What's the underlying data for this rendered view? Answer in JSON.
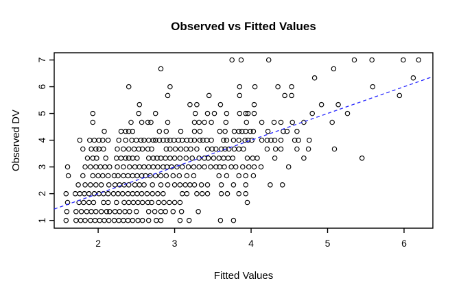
{
  "chart_data": {
    "type": "scatter",
    "title": "Observed vs Fitted Values",
    "xlabel": "Fitted Values",
    "ylabel": "Observed DV",
    "x_ticks": [
      2,
      3,
      4,
      5,
      6
    ],
    "y_ticks": [
      1,
      2,
      3,
      4,
      5,
      6,
      7
    ],
    "xlim": [
      1.425,
      6.377
    ],
    "ylim": [
      0.71,
      7.27
    ],
    "grid": false,
    "legend": "none",
    "point_style": "open-circle",
    "point_color": "#000000",
    "background_color": "#ffffff",
    "reference_line": {
      "name": "identity-line",
      "slope": 1,
      "intercept": 0,
      "color": "#2222ff",
      "style": "dashed"
    },
    "rows": [
      {
        "y": 7,
        "x": [
          3.75,
          3.87,
          4.23,
          5.35,
          5.58,
          5.99,
          6.19
        ]
      },
      {
        "y": 6.67,
        "x": [
          2.82,
          5.08
        ]
      },
      {
        "y": 6.33,
        "x": [
          4.83,
          6.12
        ]
      },
      {
        "y": 6,
        "x": [
          2.4,
          2.94,
          3.85,
          4.05,
          4.35,
          4.53,
          5.59
        ]
      },
      {
        "y": 5.67,
        "x": [
          2.91,
          3.45,
          3.85,
          4.44,
          4.53,
          5.94
        ]
      },
      {
        "y": 5.33,
        "x": [
          2.54,
          3.2,
          3.29,
          3.6,
          4.04,
          4.92,
          5.14
        ]
      },
      {
        "y": 5,
        "x": [
          1.93,
          2.53,
          2.75,
          3.27,
          3.43,
          3.52,
          3.68,
          3.85,
          3.93,
          3.96,
          4.04,
          4.8,
          5.26
        ]
      },
      {
        "y": 4.67,
        "x": [
          1.93,
          2.43,
          2.57,
          2.65,
          2.69,
          2.91,
          3.26,
          3.32,
          3.39,
          3.48,
          3.67,
          3.94,
          4.14,
          4.3,
          4.39,
          4.54,
          4.69,
          5.06
        ]
      },
      {
        "y": 4.33,
        "x": [
          2.08,
          2.3,
          2.36,
          2.4,
          2.45,
          2.8,
          2.89,
          3.08,
          3.26,
          3.33,
          3.59,
          3.66,
          3.78,
          3.84,
          3.88,
          3.93,
          3.99,
          4.03,
          4.22,
          4.42,
          4.47,
          4.6
        ]
      },
      {
        "y": 4,
        "x": [
          1.76,
          1.89,
          1.95,
          2.01,
          2.06,
          2.13,
          2.27,
          2.36,
          2.44,
          2.5,
          2.56,
          2.6,
          2.66,
          2.72,
          2.75,
          2.8,
          2.85,
          2.9,
          2.94,
          2.99,
          3.05,
          3.1,
          3.16,
          3.21,
          3.26,
          3.33,
          3.37,
          3.42,
          3.48,
          3.64,
          3.68,
          3.77,
          3.84,
          3.92,
          3.96,
          4.01,
          4.14,
          4.21,
          4.26,
          4.31,
          4.39,
          4.57,
          4.62,
          4.76
        ]
      },
      {
        "y": 3.67,
        "x": [
          1.8,
          1.91,
          1.97,
          2.01,
          2.07,
          2.25,
          2.33,
          2.4,
          2.47,
          2.53,
          2.58,
          2.65,
          2.7,
          2.89,
          2.94,
          3.01,
          3.08,
          3.15,
          3.21,
          3.29,
          3.43,
          3.49,
          3.54,
          3.61,
          3.66,
          3.71,
          3.78,
          3.84,
          3.9,
          4.21,
          4.32,
          4.39,
          4.6,
          4.75,
          5.09
        ]
      },
      {
        "y": 3.33,
        "x": [
          1.86,
          1.93,
          1.98,
          2.1,
          2.24,
          2.3,
          2.36,
          2.4,
          2.45,
          2.51,
          2.66,
          2.72,
          2.77,
          2.82,
          2.88,
          2.94,
          3.0,
          3.07,
          3.15,
          3.23,
          3.32,
          3.39,
          3.44,
          3.51,
          3.58,
          3.64,
          3.7,
          3.76,
          3.95,
          4.02,
          4.08,
          4.31,
          4.69,
          5.45
        ]
      },
      {
        "y": 3,
        "x": [
          1.6,
          1.83,
          1.9,
          1.97,
          2.03,
          2.09,
          2.15,
          2.25,
          2.33,
          2.41,
          2.48,
          2.54,
          2.6,
          2.66,
          2.72,
          2.78,
          2.85,
          2.9,
          2.96,
          3.03,
          3.1,
          3.18,
          3.25,
          3.32,
          3.39,
          3.47,
          3.54,
          3.59,
          3.65,
          3.74,
          3.8,
          3.89,
          3.97,
          4.04,
          4.13,
          4.49
        ]
      },
      {
        "y": 2.67,
        "x": [
          1.61,
          1.8,
          1.93,
          2.0,
          2.06,
          2.13,
          2.21,
          2.26,
          2.33,
          2.39,
          2.45,
          2.51,
          2.57,
          2.62,
          2.68,
          2.75,
          2.82,
          2.89,
          2.98,
          3.06,
          3.16,
          3.25,
          3.58,
          3.68,
          3.84,
          3.93,
          4.03
        ]
      },
      {
        "y": 2.33,
        "x": [
          1.74,
          1.83,
          1.9,
          1.97,
          2.04,
          2.14,
          2.22,
          2.28,
          2.34,
          2.4,
          2.48,
          2.54,
          2.6,
          2.71,
          2.82,
          2.91,
          3.0,
          3.07,
          3.14,
          3.2,
          3.26,
          3.35,
          3.43,
          3.61,
          3.77,
          3.93,
          4.25,
          4.41
        ]
      },
      {
        "y": 2,
        "x": [
          1.58,
          1.7,
          1.76,
          1.82,
          1.88,
          1.95,
          2.01,
          2.07,
          2.13,
          2.2,
          2.26,
          2.32,
          2.39,
          2.45,
          2.51,
          2.57,
          2.64,
          2.71,
          2.78,
          2.85,
          3.1,
          3.16,
          3.29,
          3.36,
          3.43,
          3.61,
          3.69,
          3.84,
          3.93
        ]
      },
      {
        "y": 1.67,
        "x": [
          1.6,
          1.75,
          1.81,
          1.88,
          1.94,
          2.07,
          2.13,
          2.24,
          2.34,
          2.4,
          2.46,
          2.52,
          2.58,
          2.65,
          2.7,
          2.79,
          2.86,
          2.93,
          3.0,
          3.07,
          3.95
        ]
      },
      {
        "y": 1.33,
        "x": [
          1.59,
          1.71,
          1.78,
          1.85,
          1.91,
          1.97,
          2.04,
          2.11,
          2.15,
          2.22,
          2.28,
          2.35,
          2.41,
          2.5,
          2.66,
          2.74,
          2.82,
          2.88,
          2.98,
          3.09,
          3.31
        ]
      },
      {
        "y": 1,
        "x": [
          1.58,
          1.71,
          1.77,
          1.83,
          1.9,
          1.96,
          2.02,
          2.08,
          2.14,
          2.21,
          2.27,
          2.33,
          2.39,
          2.45,
          2.52,
          2.58,
          2.66,
          2.76,
          2.82,
          3.07,
          3.19,
          3.6,
          3.77
        ]
      }
    ]
  }
}
